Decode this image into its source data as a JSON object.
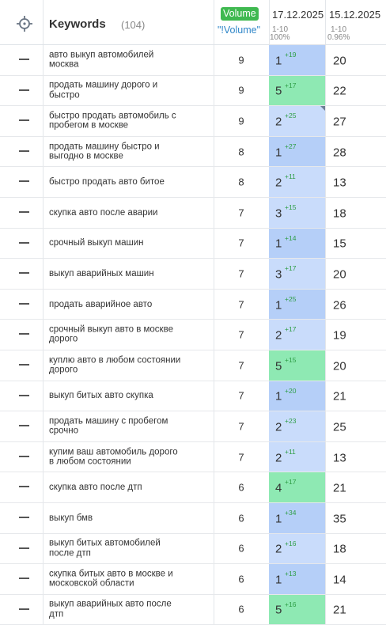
{
  "header": {
    "keywords_label": "Keywords",
    "keywords_count": "(104)",
    "volume_badge": "Volume",
    "volume_link": "\"!Volume\"",
    "date_current": "17.12.2025",
    "date_current_range": "1-10",
    "date_current_pct": "100%",
    "date_previous": "15.12.2025",
    "date_previous_range": "1-10",
    "date_previous_pct": "0.96%"
  },
  "colors": {
    "top_position": "#b5cff8",
    "mid_position": "#c9dcfb",
    "green_position": "#8ee9b3",
    "delta_text": "#2e9e46",
    "badge": "#3fb950"
  },
  "rows": [
    {
      "keyword": "авто выкуп автомобилей москва",
      "volume": "9",
      "pos": "1",
      "delta": "+19",
      "prev": "20",
      "tone": "c-top"
    },
    {
      "keyword": "продать машину дорого и быстро",
      "volume": "9",
      "pos": "5",
      "delta": "+17",
      "prev": "22",
      "tone": "c-green"
    },
    {
      "keyword": "быстро продать автомобиль с пробегом в москве",
      "volume": "9",
      "pos": "2",
      "delta": "+25",
      "prev": "27",
      "tone": "c-mid",
      "corner": true
    },
    {
      "keyword": "продать машину быстро и выгодно в москве",
      "volume": "8",
      "pos": "1",
      "delta": "+27",
      "prev": "28",
      "tone": "c-top"
    },
    {
      "keyword": "быстро продать авто битое",
      "volume": "8",
      "pos": "2",
      "delta": "+11",
      "prev": "13",
      "tone": "c-mid"
    },
    {
      "keyword": "скупка авто после аварии",
      "volume": "7",
      "pos": "3",
      "delta": "+15",
      "prev": "18",
      "tone": "c-mid"
    },
    {
      "keyword": "срочный выкуп машин",
      "volume": "7",
      "pos": "1",
      "delta": "+14",
      "prev": "15",
      "tone": "c-top"
    },
    {
      "keyword": "выкуп аварийных машин",
      "volume": "7",
      "pos": "3",
      "delta": "+17",
      "prev": "20",
      "tone": "c-mid"
    },
    {
      "keyword": "продать аварийное авто",
      "volume": "7",
      "pos": "1",
      "delta": "+25",
      "prev": "26",
      "tone": "c-top"
    },
    {
      "keyword": "срочный выкуп авто в москве дорого",
      "volume": "7",
      "pos": "2",
      "delta": "+17",
      "prev": "19",
      "tone": "c-mid"
    },
    {
      "keyword": "куплю авто в любом состоянии дорого",
      "volume": "7",
      "pos": "5",
      "delta": "+15",
      "prev": "20",
      "tone": "c-green"
    },
    {
      "keyword": "выкуп битых авто скупка",
      "volume": "7",
      "pos": "1",
      "delta": "+20",
      "prev": "21",
      "tone": "c-top"
    },
    {
      "keyword": "продать машину с пробегом срочно",
      "volume": "7",
      "pos": "2",
      "delta": "+23",
      "prev": "25",
      "tone": "c-mid"
    },
    {
      "keyword": "купим ваш автомобиль дорого в любом состоянии",
      "volume": "7",
      "pos": "2",
      "delta": "+11",
      "prev": "13",
      "tone": "c-mid"
    },
    {
      "keyword": "скупка авто после дтп",
      "volume": "6",
      "pos": "4",
      "delta": "+17",
      "prev": "21",
      "tone": "c-green"
    },
    {
      "keyword": "выкуп бмв",
      "volume": "6",
      "pos": "1",
      "delta": "+34",
      "prev": "35",
      "tone": "c-top"
    },
    {
      "keyword": "выкуп битых автомобилей после дтп",
      "volume": "6",
      "pos": "2",
      "delta": "+16",
      "prev": "18",
      "tone": "c-mid"
    },
    {
      "keyword": "скупка битых авто в москве и московской области",
      "volume": "6",
      "pos": "1",
      "delta": "+13",
      "prev": "14",
      "tone": "c-top"
    },
    {
      "keyword": "выкуп аварийных авто после дтп",
      "volume": "6",
      "pos": "5",
      "delta": "+16",
      "prev": "21",
      "tone": "c-green"
    }
  ]
}
